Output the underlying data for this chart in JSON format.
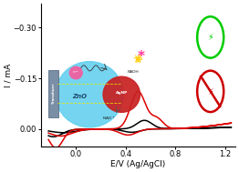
{
  "xlabel": "E/V (Ag/AgCl)",
  "ylabel": "I / mA",
  "xlim": [
    -0.28,
    1.28
  ],
  "ylim": [
    0.05,
    -0.37
  ],
  "yticks": [
    -0.3,
    -0.15,
    0.0
  ],
  "xticks": [
    0.0,
    0.4,
    0.8,
    1.2
  ],
  "background_color": "#ffffff",
  "curve_black_color": "#000000",
  "curve_red_color": "#dd0000",
  "linewidth": 1.1
}
